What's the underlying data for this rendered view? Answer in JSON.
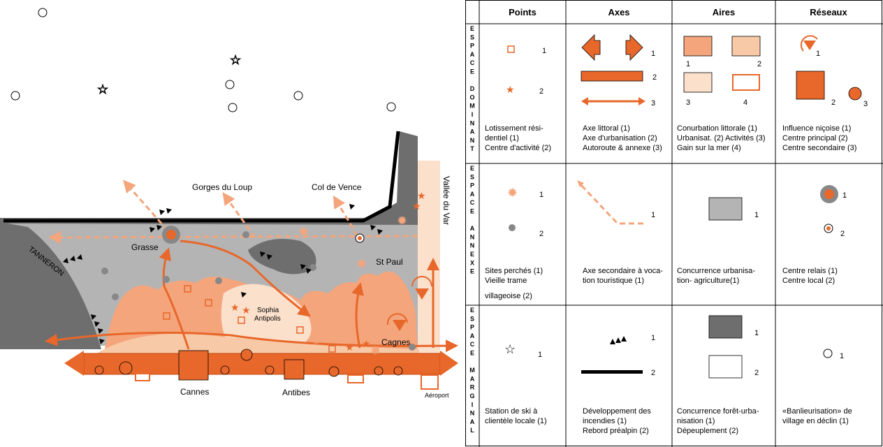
{
  "map": {
    "labels": {
      "gorges": "Gorges du Loup",
      "col": "Col de Vence",
      "var": "Vallée du Var",
      "tanneron": "TANNERON",
      "grasse": "Grasse",
      "stpaul": "St Paul",
      "sophia1": "Sophia",
      "sophia2": "Antipolis",
      "cagnes": "Cagnes",
      "cannes": "Cannes",
      "antibes": "Antibes",
      "aeroport": "Aéroport"
    }
  },
  "legend": {
    "columns": [
      "Points",
      "Axes",
      "Aires",
      "Réseaux"
    ],
    "rows": [
      {
        "title": "ESPACE DOMINANT",
        "letters": [
          "E",
          "S",
          "P",
          "A",
          "C",
          "E",
          "",
          "D",
          "O",
          "M",
          "I",
          "N",
          "A",
          "N",
          "T"
        ]
      },
      {
        "title": "ESPACE ANNEXE",
        "letters": [
          "E",
          "S",
          "P",
          "A",
          "C",
          "E",
          "",
          "A",
          "N",
          "N",
          "E",
          "X",
          "E"
        ]
      },
      {
        "title": "ESPACE MARGINAL",
        "letters": [
          "E",
          "S",
          "P",
          "A",
          "C",
          "E",
          "",
          "M",
          "A",
          "R",
          "G",
          "I",
          "N",
          "A",
          "L"
        ]
      }
    ],
    "numbers": {
      "n1": "1",
      "n2": "2",
      "n3": "3",
      "n4": "4"
    },
    "captions": {
      "dom_points": [
        "Lotissement rési-",
        "dentiel (1)",
        "Centre d'activité (2)"
      ],
      "dom_axes": [
        "Axe littoral (1)",
        "Axe d'urbanisation (2)",
        "Autoroute & annexe (3)"
      ],
      "dom_aires": [
        "Conurbation littorale (1)",
        "Urbanisat. (2) Activités (3)",
        "Gain sur la mer (4)"
      ],
      "dom_reseaux": [
        "Influence niçoise (1)",
        "Centre principal (2)",
        "Centre secondaire (3)"
      ],
      "ann_points": [
        "Sites perchés (1)",
        "Vieille trame",
        "villageoise (2)"
      ],
      "ann_axes": [
        "Axe secondaire à voca-",
        "tion touristique (1)"
      ],
      "ann_aires": [
        "Concurrence urbanisa-",
        "tion- agriculture(1)"
      ],
      "ann_reseaux": [
        "Centre relais (1)",
        "Centre local (2)"
      ],
      "mar_points": [
        "Station de ski à",
        "clientèle locale (1)"
      ],
      "mar_axes": [
        "Développement des",
        "incendies (1)",
        "Rebord préalpin (2)"
      ],
      "mar_aires": [
        "Concurrence forêt-urba-",
        "nisation (1)",
        "Dépeuplement (2)"
      ],
      "mar_reseaux": [
        "«Banlieurisation» de",
        "village en déclin  (1)"
      ]
    },
    "colors": {
      "orange": "#E8672A",
      "light_orange": "#F4A57C",
      "pale_orange": "#F8C9A6",
      "very_pale": "#FBE0CC",
      "grey": "#B4B4B4",
      "dark_grey": "#6E6E6E"
    }
  }
}
